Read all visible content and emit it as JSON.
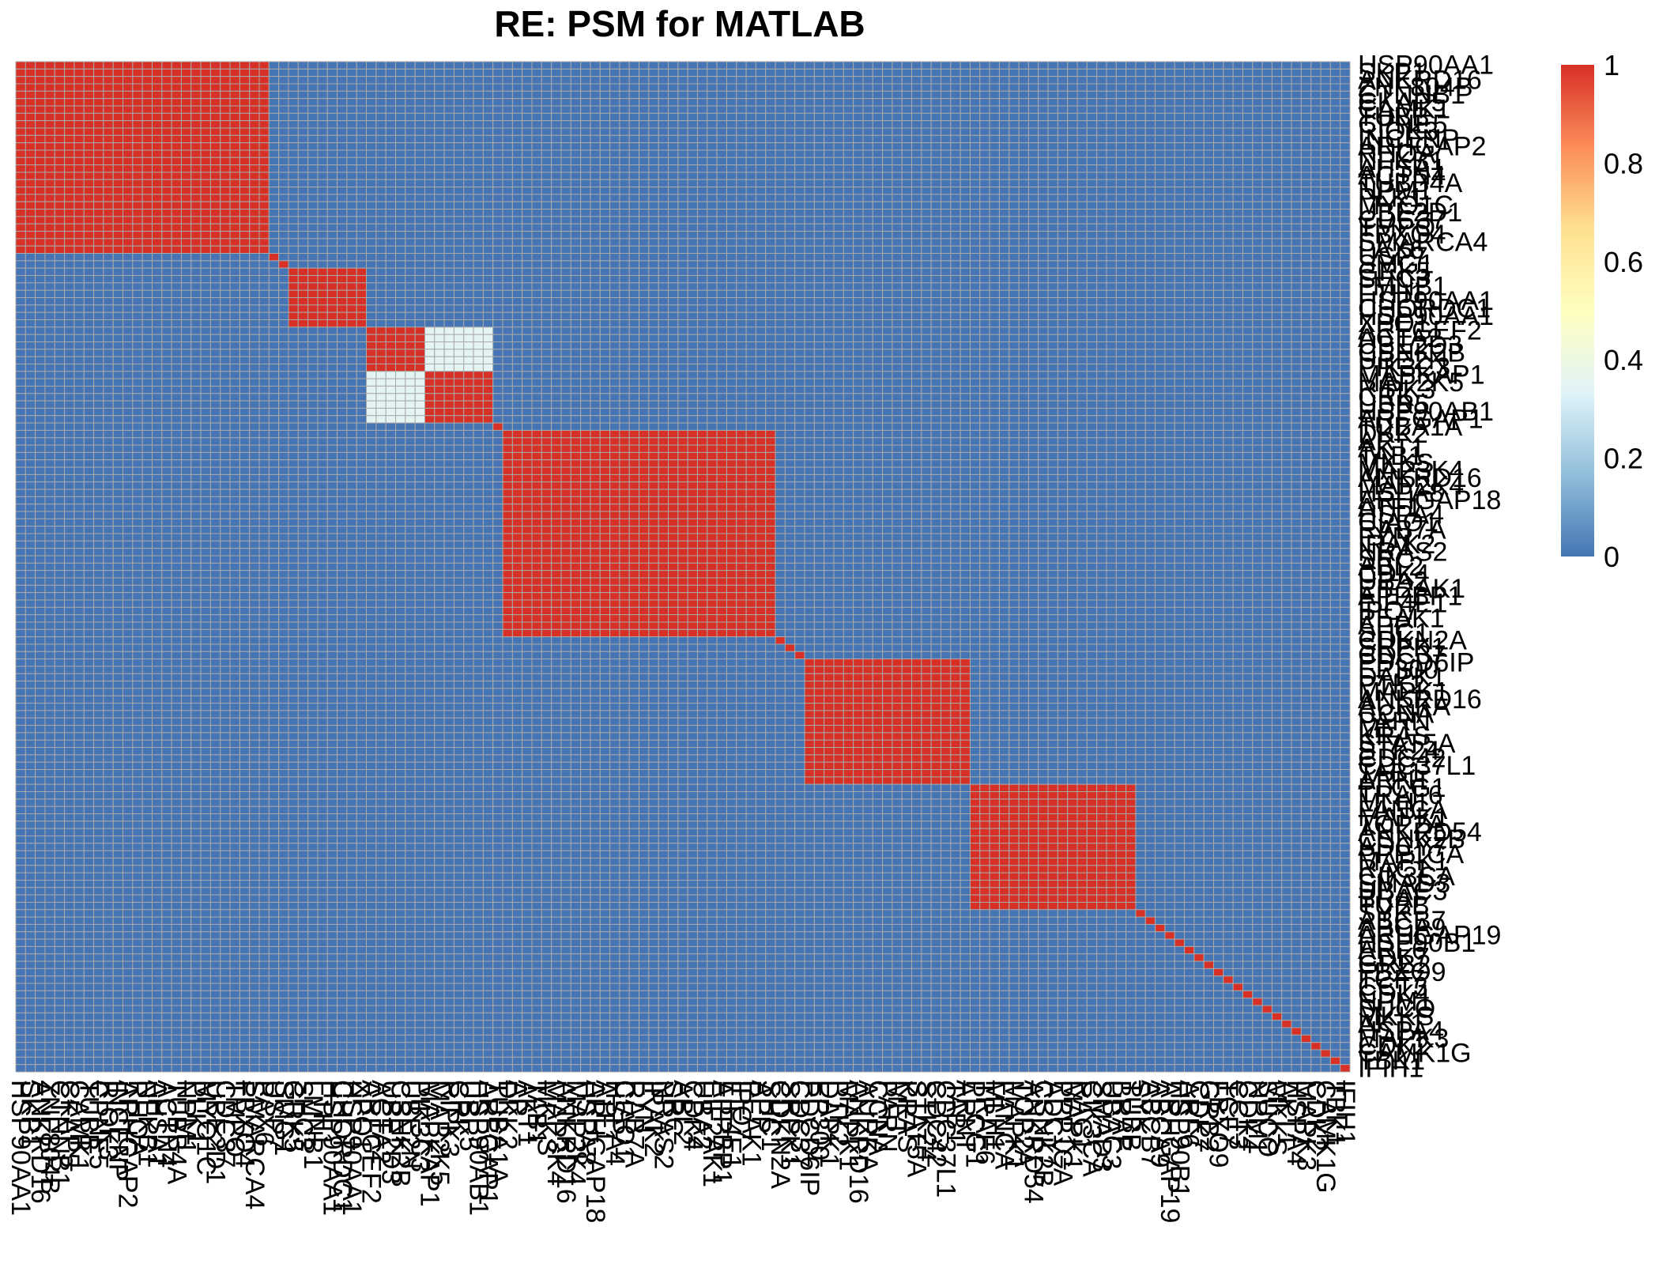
{
  "chart_data": {
    "type": "heatmap",
    "title": "RE: PSM for MATLAB",
    "labels": [
      "HSP90AA1",
      "SKP1",
      "ANKRD16",
      "ZNF804B",
      "CTNNB1",
      "CKAP5",
      "CAMK1",
      "TUBB",
      "CPNE5",
      "RIOK3",
      "INCENP",
      "ARHGAP2",
      "RHOA",
      "NFKB1",
      "AHSA1",
      "ACTN4",
      "TUBB4A",
      "NPM1",
      "PLK1",
      "MYO1C",
      "UBE2D1",
      "CDC37",
      "TMPO",
      "FBXO4",
      "SMARCA4",
      "PAX6",
      "USP7",
      "SMG1",
      "GRK5",
      "SHC3",
      "LMNB1",
      "FTH1",
      "HSP90AA1",
      "CHORDC1",
      "HSP90AA1",
      "XPO1",
      "ARFGEF2",
      "ACTA2",
      "UBE2D3",
      "CSNK2B",
      "UBE2N",
      "PIK3C3",
      "MAPKAP1",
      "MAP2K5",
      "RIPK3",
      "CRK",
      "UBR5",
      "HSP90AB1",
      "ARFGAP1",
      "TUBA1A",
      "DKK2",
      "AR",
      "AKT1",
      "TAB1",
      "MKKS",
      "MAP3K4",
      "ANKRD16",
      "MAP2K4",
      "HSPA8",
      "ARHGAP18",
      "ATF1",
      "HSPA4",
      "CIAO1",
      "RAB7A",
      "FYN",
      "IRAK2",
      "NRAS2",
      "SRC",
      "ABL2",
      "CDK4",
      "UBA2",
      "EIF2AK1",
      "APPBP1",
      "EIF4E1",
      "IPO7",
      "PEAK1",
      "APP",
      "SHC1",
      "CDKN2A",
      "SRPK1",
      "CDC37",
      "PDCD6IP",
      "EP300",
      "DAPK1",
      "PTK2",
      "MAPK1",
      "ANKRD16",
      "AURKA",
      "CCNA",
      "PARN",
      "MET",
      "KRAS",
      "STAT5A",
      "STK24",
      "CDC42",
      "CDC37L1",
      "TAB1",
      "ARNT",
      "PLCG1",
      "TRAF6",
      "MLH1",
      "FANCA",
      "MAPK1",
      "TOP2A",
      "ANKRD54",
      "CSNK2B",
      "ADCY7",
      "PPP1CA",
      "MAPK1",
      "RAC1",
      "CIK3CA",
      "SMAD3",
      "UBAC3",
      "BRAF",
      "TUBB",
      "SYK",
      "ABCB7",
      "ABCA9",
      "ARHGAP19",
      "HSP90B1",
      "ARF6",
      "CDK7",
      "GRB2",
      "FBXO9",
      "TCF7",
      "CCT3",
      "CDK4",
      "NPM1",
      "SUCO",
      "MKKS",
      "AKT1",
      "HSPA4",
      "MAPK3",
      "CDK2",
      "CAMK1G",
      "TBK1",
      "IFIH1"
    ],
    "blocks": [
      {
        "from": 0,
        "to": 25
      },
      {
        "from": 26,
        "to": 26
      },
      {
        "from": 28,
        "to": 35
      },
      {
        "from": 36,
        "to": 41
      },
      {
        "from": 42,
        "to": 48
      },
      {
        "from": 50,
        "to": 77
      },
      {
        "from": 81,
        "to": 97
      },
      {
        "from": 98,
        "to": 114
      }
    ],
    "partial": [
      {
        "rows": [
          36,
          41
        ],
        "cols": [
          42,
          48
        ],
        "value": 0.35
      },
      {
        "rows": [
          42,
          48
        ],
        "cols": [
          36,
          41
        ],
        "value": 0.35
      }
    ],
    "colorbar": {
      "min": 0,
      "max": 1,
      "ticks": [
        "0",
        "0.2",
        "0.4",
        "0.6",
        "0.8",
        "1"
      ],
      "colors": [
        "#4575b4",
        "#91bfdb",
        "#e0f3f8",
        "#ffffbf",
        "#fee090",
        "#fc8d59",
        "#d73027"
      ]
    },
    "grid": true,
    "legend": "right"
  }
}
